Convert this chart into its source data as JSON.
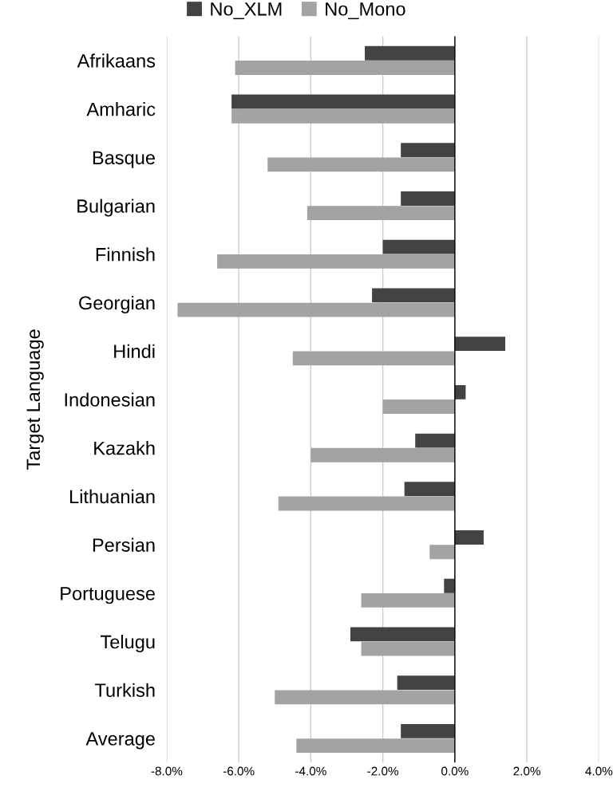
{
  "chart_data": {
    "type": "bar",
    "orientation": "horizontal",
    "ylabel": "Target Language",
    "categories": [
      "Afrikaans",
      "Amharic",
      "Basque",
      "Bulgarian",
      "Finnish",
      "Georgian",
      "Hindi",
      "Indonesian",
      "Kazakh",
      "Lithuanian",
      "Persian",
      "Portuguese",
      "Telugu",
      "Turkish",
      "Average"
    ],
    "series": [
      {
        "name": "No_XLM",
        "color": "#434343",
        "values": [
          -2.5,
          -6.2,
          -1.5,
          -1.5,
          -2.0,
          -2.3,
          1.4,
          0.3,
          -1.1,
          -1.4,
          0.8,
          -0.3,
          -2.9,
          -1.6,
          -1.5
        ]
      },
      {
        "name": "No_Mono",
        "color": "#a3a3a3",
        "values": [
          -6.1,
          -6.2,
          -5.2,
          -4.1,
          -6.6,
          -7.7,
          -4.5,
          -2.0,
          -4.0,
          -4.9,
          -0.7,
          -2.6,
          -2.6,
          -5.0,
          -4.4
        ]
      }
    ],
    "xlim": [
      -8,
      4
    ],
    "xticks": [
      {
        "value": -8,
        "label": "-8.0%"
      },
      {
        "value": -6,
        "label": "-6.0%"
      },
      {
        "value": -4,
        "label": "-4.0%"
      },
      {
        "value": -2,
        "label": "-2.0%"
      },
      {
        "value": 0,
        "label": "0.0%"
      },
      {
        "value": 2,
        "label": "2.0%"
      },
      {
        "value": 4,
        "label": "4.0%"
      }
    ],
    "grid": "x",
    "legend": "top"
  }
}
